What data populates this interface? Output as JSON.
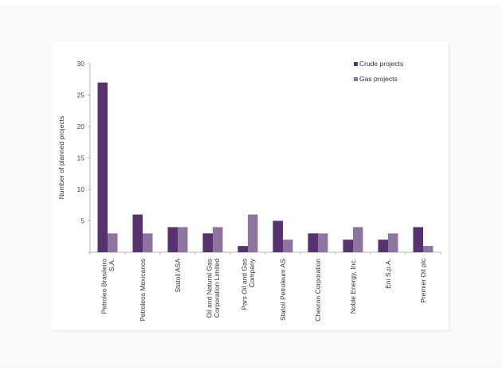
{
  "chart_data": {
    "type": "bar",
    "title": "",
    "xlabel": "",
    "ylabel": "Number of planned projects",
    "ylim": [
      0,
      30
    ],
    "yticks": [
      5,
      10,
      15,
      20,
      25,
      30
    ],
    "grid": false,
    "legend_position": "top-right",
    "categories": [
      [
        "Petroleo Brasileiro",
        "S.A."
      ],
      [
        "Petroleos Mexicanos"
      ],
      [
        "Statoil ASA"
      ],
      [
        "Oil and Natural Gas",
        "Corporation Limited"
      ],
      [
        "Pars Oil and Gas",
        "Company"
      ],
      [
        "Statoil Petroleum AS"
      ],
      [
        "Chevron Corporation"
      ],
      [
        "Noble Energy, Inc."
      ],
      [
        "Eni S.p.A."
      ],
      [
        "Premier Oil plc"
      ]
    ],
    "series": [
      {
        "name": "Crude projects",
        "color": "#56326f",
        "values": [
          27,
          6,
          4,
          3,
          1,
          5,
          3,
          2,
          2,
          4
        ]
      },
      {
        "name": "Gas projects",
        "color": "#8e74a0",
        "values": [
          3,
          3,
          4,
          4,
          6,
          2,
          3,
          4,
          3,
          1
        ]
      }
    ]
  }
}
